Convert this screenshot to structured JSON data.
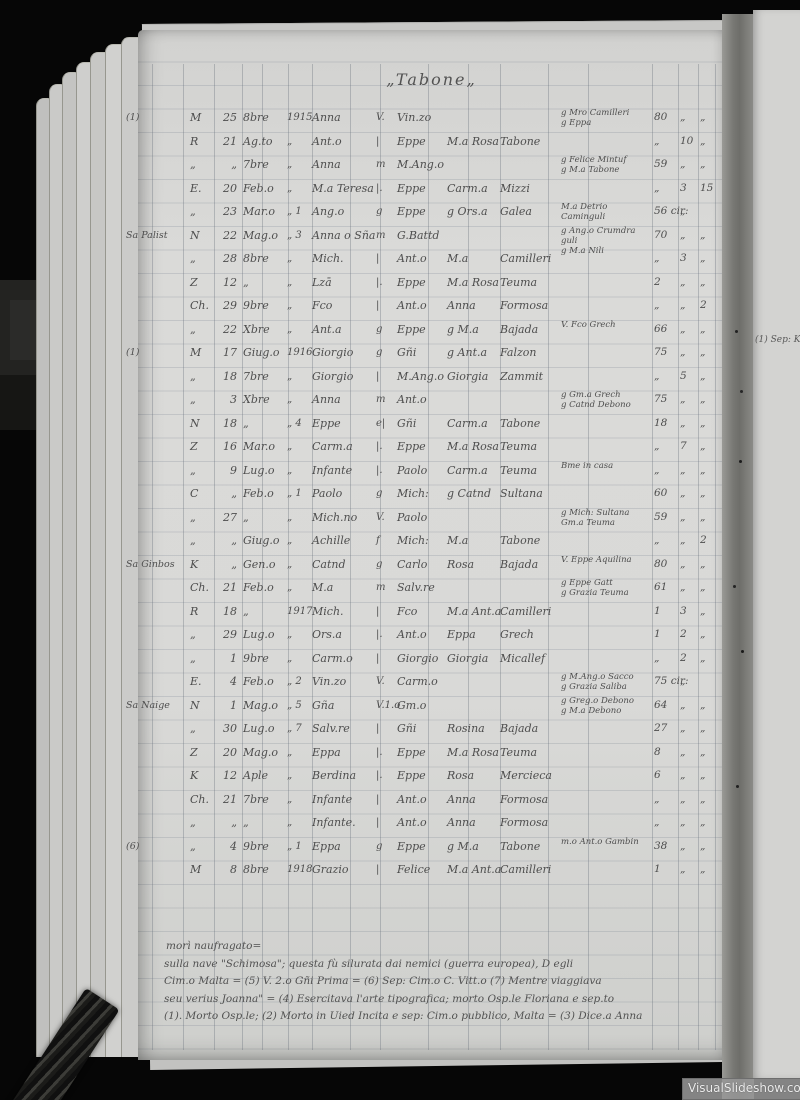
{
  "page_title": "„Tabone„",
  "colors": {
    "ink": "#4e4e4e",
    "paper": "#d8d8d6",
    "background": "#060606",
    "gutter": "#7b7b79",
    "watermark_bg": "#969696"
  },
  "register_table": {
    "columns": [
      "margin_note",
      "letter",
      "day",
      "month",
      "year",
      "name",
      "relation",
      "father",
      "mother",
      "surname",
      "side_notes",
      "years",
      "months",
      "days"
    ],
    "rows": [
      [
        "(1)",
        "M",
        "25",
        "8bre",
        "1915",
        "Anna",
        "V.",
        "Vin.zo",
        "",
        "",
        "g Mro Camilleri\ng Eppa",
        "80",
        "„",
        "„"
      ],
      [
        "",
        "R",
        "21",
        "Ag.to",
        "„",
        "Ant.o",
        "|",
        "Eppe",
        "M.a Rosa",
        "Tabone",
        "",
        "„",
        "10",
        "„"
      ],
      [
        "",
        "„",
        "„",
        "7bre",
        "„",
        "Anna",
        "m",
        "M.Ang.o",
        "",
        "",
        "g Felice Mintuf\ng M.a Tabone",
        "59",
        "„",
        "„"
      ],
      [
        "",
        "E.",
        "20",
        "Feb.o",
        "„",
        "M.a Teresa",
        "|.",
        "Eppe",
        "Carm.a",
        "Mizzi",
        "",
        "„",
        "3",
        "15"
      ],
      [
        "",
        "„",
        "23",
        "Mar.o",
        "„ 1",
        "Ang.o",
        "g",
        "Eppe",
        "g Ors.a",
        "Galea",
        "M.a Detrio Caminguli",
        "56 cir:",
        "„",
        ""
      ],
      [
        "Sa Palist",
        "N",
        "22",
        "Mag.o",
        "„ 3",
        "Anna o Sña",
        "m",
        "G.Battd",
        "",
        "",
        "g Ang.o Crumdra guli\ng M.a Nili",
        "70",
        "„",
        "„"
      ],
      [
        "",
        "„",
        "28",
        "8bre",
        "„",
        "Mich.",
        "|",
        "Ant.o",
        "M.a",
        "Camilleri",
        "",
        "„",
        "3",
        "„"
      ],
      [
        "",
        "Z",
        "12",
        "„",
        "„",
        "Lzā",
        "|.",
        "Eppe",
        "M.a Rosa",
        "Teuma",
        "",
        "2",
        "„",
        "„"
      ],
      [
        "",
        "Ch.",
        "29",
        "9bre",
        "„",
        "Fco",
        "|",
        "Ant.o",
        "Anna",
        "Formosa",
        "",
        "„",
        "„",
        "2"
      ],
      [
        "",
        "„",
        "22",
        "Xbre",
        "„",
        "Ant.a",
        "g",
        "Eppe",
        "g M.a",
        "Bajada",
        "V. Fco Grech",
        "66",
        "„",
        "„"
      ],
      [
        "(1)",
        "M",
        "17",
        "Giug.o",
        "1916",
        "Giorgio",
        "g",
        "Gñi",
        "g Ant.a",
        "Falzon",
        "",
        "75",
        "„",
        "„"
      ],
      [
        "",
        "„",
        "18",
        "7bre",
        "„",
        "Giorgio",
        "|",
        "M.Ang.o",
        "Giorgia",
        "Zammit",
        "",
        "„",
        "5",
        "„"
      ],
      [
        "",
        "„",
        "3",
        "Xbre",
        "„",
        "Anna",
        "m",
        "Ant.o",
        "",
        "",
        "g Gm.a Grech\ng Catnd Debono",
        "75",
        "„",
        "„"
      ],
      [
        "",
        "N",
        "18",
        "„",
        "„ 4",
        "Eppe",
        "e|",
        "Gñi",
        "Carm.a",
        "Tabone",
        "",
        "18",
        "„",
        "„"
      ],
      [
        "",
        "Z",
        "16",
        "Mar.o",
        "„",
        "Carm.a",
        "|.",
        "Eppe",
        "M.a Rosa",
        "Teuma",
        "",
        "„",
        "7",
        "„"
      ],
      [
        "",
        "„",
        "9",
        "Lug.o",
        "„",
        "Infante",
        "|.",
        "Paolo",
        "Carm.a",
        "Teuma",
        "Bme in casa",
        "„",
        "„",
        "„"
      ],
      [
        "",
        "C",
        "„",
        "Feb.o",
        "„ 1",
        "Paolo",
        "g",
        "Mich:",
        "g Catnd",
        "Sultana",
        "",
        "60",
        "„",
        "„"
      ],
      [
        "",
        "„",
        "27",
        "„",
        "„",
        "Mich.no",
        "V.",
        "Paolo",
        "",
        "",
        "g Mich: Sultana\nGm.a Teuma",
        "59",
        "„",
        "„"
      ],
      [
        "",
        "„",
        "„",
        "Giug.o",
        "„",
        "Achille",
        "f",
        "Mich:",
        "M.a",
        "Tabone",
        "",
        "„",
        "„",
        "2"
      ],
      [
        "Sa Ginbos",
        "K",
        "„",
        "Gen.o",
        "„",
        "Catnd",
        "g",
        "Carlo",
        "Rosa",
        "Bajada",
        "V. Eppe Aquilina",
        "80",
        "„",
        "„"
      ],
      [
        "",
        "Ch.",
        "21",
        "Feb.o",
        "„",
        "M.a",
        "m",
        "Salv.re",
        "",
        "",
        "g Eppe Gatt\ng Grazia Teuma",
        "61",
        "„",
        "„"
      ],
      [
        "",
        "R",
        "18",
        "„",
        "1917",
        "Mich.",
        "|",
        "Fco",
        "M.a Ant.a",
        "Camilleri",
        "",
        "1",
        "3",
        "„"
      ],
      [
        "",
        "„",
        "29",
        "Lug.o",
        "„",
        "Ors.a",
        "|.",
        "Ant.o",
        "Eppa",
        "Grech",
        "",
        "1",
        "2",
        "„"
      ],
      [
        "",
        "„",
        "1",
        "9bre",
        "„",
        "Carm.o",
        "|",
        "Giorgio",
        "Giorgia",
        "Micallef",
        "",
        "„",
        "2",
        "„"
      ],
      [
        "",
        "E.",
        "4",
        "Feb.o",
        "„ 2",
        "Vin.zo",
        "V.",
        "Carm.o",
        "",
        "",
        "g M.Ang.o Sacco\ng Grazia Saliba",
        "75 cir:",
        "„",
        ""
      ],
      [
        "Sa Naige",
        "N",
        "1",
        "Mag.o",
        "„ 5",
        "Gña",
        "V.1.o",
        "Gm.o",
        "",
        "",
        "g Greg.o Debono\ng M.a Debono",
        "64",
        "„",
        "„"
      ],
      [
        "",
        "„",
        "30",
        "Lug.o",
        "„ 7",
        "Salv.re",
        "|",
        "Gñi",
        "Rosina",
        "Bajada",
        "",
        "27",
        "„",
        "„"
      ],
      [
        "",
        "Z",
        "20",
        "Mag.o",
        "„",
        "Eppa",
        "|.",
        "Eppe",
        "M.a Rosa",
        "Teuma",
        "",
        "8",
        "„",
        "„"
      ],
      [
        "",
        "K",
        "12",
        "Aple",
        "„",
        "Berdina",
        "|.",
        "Eppe",
        "Rosa",
        "Mercieca",
        "",
        "6",
        "„",
        "„"
      ],
      [
        "",
        "Ch.",
        "21",
        "7bre",
        "„",
        "Infante",
        "|",
        "Ant.o",
        "Anna",
        "Formosa",
        "",
        "„",
        "„",
        "„"
      ],
      [
        "",
        "„",
        "„",
        "„",
        "„",
        "Infante.",
        "|",
        "Ant.o",
        "Anna",
        "Formosa",
        "",
        "„",
        "„",
        "„"
      ],
      [
        "(6)",
        "„",
        "4",
        "9bre",
        "„ 1",
        "Eppa",
        "g",
        "Eppe",
        "g M.a",
        "Tabone",
        "m.o Ant.o Gambin",
        "38",
        "„",
        "„"
      ],
      [
        "",
        "M",
        "8",
        "8bre",
        "1918",
        "Grazio",
        "|",
        "Felice",
        "M.a Ant.a",
        "Camilleri",
        "",
        "1",
        "„",
        "„"
      ]
    ]
  },
  "footnotes": [
    "morì naufragato=",
    "sulla nave \"Schimosa\"; questa fù silurata dai nemici (guerra europea), D egli",
    "Cim.o Malta = (5) V. 2.o Gñi Prima = (6) Sep: Cim.o C. Vitt.o (7) Mentre viaggiava",
    "seu verius Joanna\" = (4) Esercitava l'arte tipografica; morto Osp.le Floriana e sep.to",
    "(1). Morto Osp.le; (2) Morto in Uied Incita e sep: Cim.o pubblico, Malta = (3) Dice.a Anna"
  ],
  "adjacent_page_fragment": "(1) Sep: K",
  "watermark": "VisualSlideshow.com"
}
